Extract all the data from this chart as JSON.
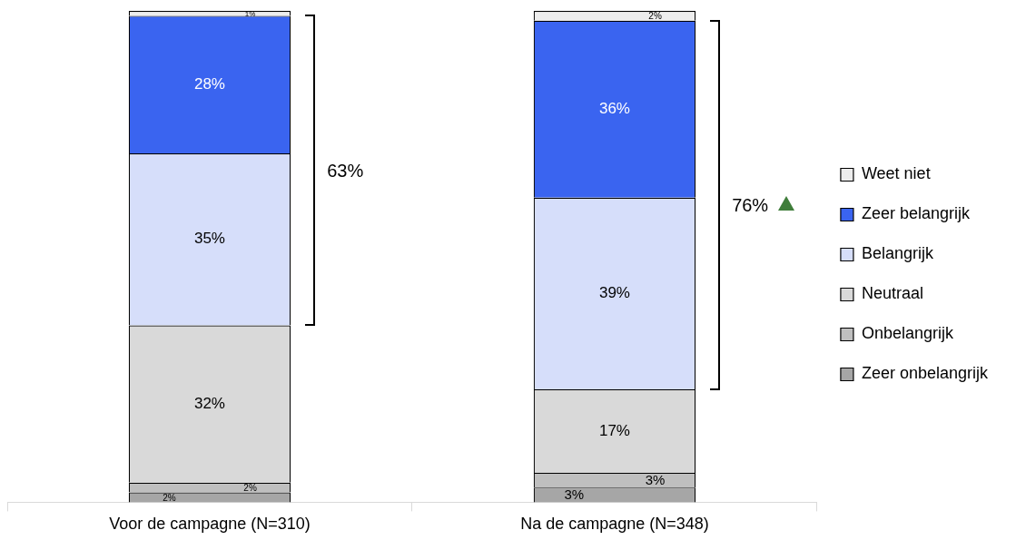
{
  "chart_data": {
    "type": "bar",
    "stacked": true,
    "categories": [
      "Voor de campagne (N=310)",
      "Na de campagne (N=348)"
    ],
    "series": [
      {
        "name": "Zeer onbelangrijk",
        "color": "#a6a6a6",
        "values": [
          2,
          3
        ],
        "value_labels": [
          "2%",
          "3%"
        ]
      },
      {
        "name": "Onbelangrijk",
        "color": "#bfbfbf",
        "values": [
          2,
          3
        ],
        "value_labels": [
          "2%",
          "3%"
        ]
      },
      {
        "name": "Neutraal",
        "color": "#d9d9d9",
        "values": [
          32,
          17
        ],
        "value_labels": [
          "32%",
          "17%"
        ]
      },
      {
        "name": "Belangrijk",
        "color": "#d6defa",
        "values": [
          35,
          39
        ],
        "value_labels": [
          "35%",
          "39%"
        ]
      },
      {
        "name": "Zeer belangrijk",
        "color": "#3a64f0",
        "values": [
          28,
          36
        ],
        "value_labels": [
          "28%",
          "36%"
        ]
      },
      {
        "name": "Weet niet",
        "color": "#ededed",
        "values": [
          1,
          2
        ],
        "value_labels": [
          "1%",
          "2%"
        ]
      }
    ],
    "annotations": [
      "63%",
      "76%"
    ],
    "legend": "right",
    "grid": false
  }
}
